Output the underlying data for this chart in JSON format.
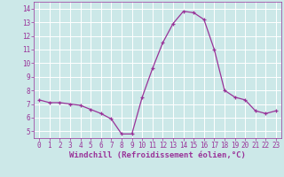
{
  "x": [
    0,
    1,
    2,
    3,
    4,
    5,
    6,
    7,
    8,
    9,
    10,
    11,
    12,
    13,
    14,
    15,
    16,
    17,
    18,
    19,
    20,
    21,
    22,
    23
  ],
  "y": [
    7.3,
    7.1,
    7.1,
    7.0,
    6.9,
    6.6,
    6.3,
    5.9,
    4.8,
    4.8,
    7.5,
    9.6,
    11.5,
    12.9,
    13.8,
    13.7,
    13.2,
    11.0,
    8.0,
    7.5,
    7.3,
    6.5,
    6.3,
    6.5
  ],
  "line_color": "#993399",
  "marker": "+",
  "marker_size": 3,
  "bg_color": "#cce8e8",
  "grid_color": "#ffffff",
  "xlabel": "Windchill (Refroidissement éolien,°C)",
  "xlabel_color": "#993399",
  "tick_color": "#993399",
  "ylim": [
    4.5,
    14.5
  ],
  "xlim": [
    -0.5,
    23.5
  ],
  "yticks": [
    5,
    6,
    7,
    8,
    9,
    10,
    11,
    12,
    13,
    14
  ],
  "xticks": [
    0,
    1,
    2,
    3,
    4,
    5,
    6,
    7,
    8,
    9,
    10,
    11,
    12,
    13,
    14,
    15,
    16,
    17,
    18,
    19,
    20,
    21,
    22,
    23
  ],
  "tick_fontsize": 5.5,
  "label_fontsize": 6.5
}
